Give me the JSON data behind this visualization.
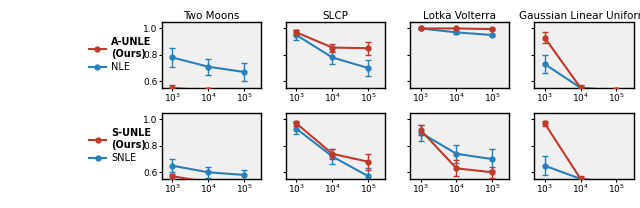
{
  "x": [
    1000,
    10000,
    100000
  ],
  "col_titles": [
    "Two Moons",
    "SLCP",
    "Lotka Volterra",
    "Gaussian Linear Uniform"
  ],
  "row1": {
    "label1": "A-UNLE\n(Ours)",
    "label2": "NLE",
    "color1": "#C0392B",
    "color2": "#2980B9",
    "data1_mean": [
      [
        0.55,
        0.53,
        0.52
      ],
      [
        0.97,
        0.855,
        0.85
      ],
      [
        1.0,
        1.0,
        0.995
      ],
      [
        0.93,
        0.55,
        0.53
      ]
    ],
    "data1_err": [
      [
        0.02,
        0.015,
        0.01
      ],
      [
        0.02,
        0.03,
        0.05
      ],
      [
        0.005,
        0.005,
        0.005
      ],
      [
        0.04,
        0.02,
        0.015
      ]
    ],
    "data2_mean": [
      [
        0.78,
        0.71,
        0.67
      ],
      [
        0.95,
        0.78,
        0.7
      ],
      [
        1.0,
        0.97,
        0.95
      ],
      [
        0.73,
        0.55,
        0.525
      ]
    ],
    "data2_err": [
      [
        0.07,
        0.06,
        0.07
      ],
      [
        0.04,
        0.05,
        0.06
      ],
      [
        0.005,
        0.01,
        0.01
      ],
      [
        0.07,
        0.015,
        0.01
      ]
    ]
  },
  "row2": {
    "label1": "S-UNLE\n(Ours)",
    "label2": "SNLE",
    "color1": "#C0392B",
    "color2": "#2980B9",
    "data1_mean": [
      [
        0.57,
        0.525,
        0.515
      ],
      [
        0.97,
        0.74,
        0.68
      ],
      [
        0.92,
        0.63,
        0.6
      ],
      [
        0.97,
        0.55,
        0.52
      ]
    ],
    "data1_err": [
      [
        0.02,
        0.015,
        0.01
      ],
      [
        0.02,
        0.04,
        0.06
      ],
      [
        0.04,
        0.06,
        0.04
      ],
      [
        0.02,
        0.02,
        0.015
      ]
    ],
    "data2_mean": [
      [
        0.65,
        0.6,
        0.58
      ],
      [
        0.93,
        0.72,
        0.57
      ],
      [
        0.9,
        0.74,
        0.7
      ],
      [
        0.65,
        0.55,
        0.52
      ]
    ],
    "data2_err": [
      [
        0.05,
        0.04,
        0.04
      ],
      [
        0.04,
        0.06,
        0.06
      ],
      [
        0.06,
        0.07,
        0.08
      ],
      [
        0.07,
        0.015,
        0.015
      ]
    ]
  },
  "ylim": [
    0.55,
    1.05
  ],
  "yticks": [
    0.6,
    0.8,
    1.0
  ],
  "figsize": [
    6.4,
    2.08
  ],
  "dpi": 100,
  "bg_color": "#f0f0f0"
}
